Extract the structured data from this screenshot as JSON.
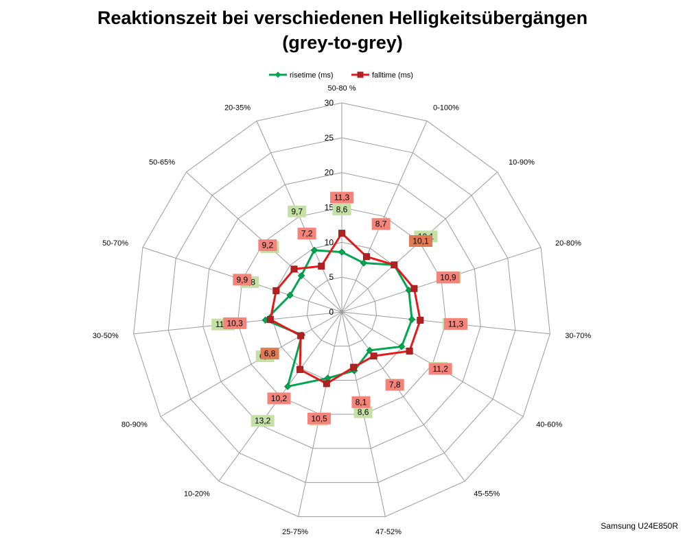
{
  "chart_data": {
    "type": "radar",
    "title_line1": "Reaktionszeit bei verschiedenen Helligkeitsübergängen",
    "title_line2": "(grey-to-grey)",
    "categories": [
      "50-80 %",
      "0-100%",
      "10-90%",
      "20-80%",
      "30-70%",
      "40-60%",
      "45-55%",
      "47-52%",
      "25-75%",
      "10-20%",
      "80-90%",
      "30-50%",
      "50-70%",
      "50-65%",
      "20-35%"
    ],
    "axis": {
      "min": 0,
      "max": 30,
      "step": 5,
      "ticks": [
        "0",
        "5",
        "10",
        "15",
        "20",
        "25",
        "30"
      ]
    },
    "series": [
      {
        "name": "risetime (ms)",
        "color": "#00a650",
        "values": [
          8.6,
          7.7,
          10.1,
          10.1,
          10.1,
          9.9,
          6.8,
          8.6,
          9.7,
          13.2,
          6.6,
          11.0,
          7.8,
          7.8,
          9.7
        ],
        "labels": [
          "8,6",
          "7,7",
          "10,1",
          "10,1",
          "10,1",
          "9,9",
          "6,8",
          "8,6",
          "9,7",
          "13,2",
          "6,6",
          "11,0",
          "7,8",
          "7,8",
          "9,7"
        ]
      },
      {
        "name": "falltime (ms)",
        "color": "#e31a1c",
        "values": [
          11.3,
          8.7,
          10.1,
          10.9,
          11.3,
          11.2,
          7.8,
          8.1,
          10.5,
          10.2,
          6.8,
          10.3,
          9.9,
          9.2,
          7.2
        ],
        "labels": [
          "11,3",
          "8,7",
          "10,1",
          "10,9",
          "11,3",
          "11,2",
          "7,8",
          "8,1",
          "10,5",
          "10,2",
          "6,8",
          "10,3",
          "9,9",
          "9,2",
          "7,2"
        ]
      }
    ],
    "legend": {
      "position": "top",
      "items": [
        "risetime (ms)",
        "falltime (ms)"
      ]
    },
    "grid": true,
    "label_colors": {
      "risetime": "#c5e0a5",
      "falltime": "#f4837a",
      "overlap": "#e07a52"
    }
  },
  "credit": "Samsung U24E850R"
}
